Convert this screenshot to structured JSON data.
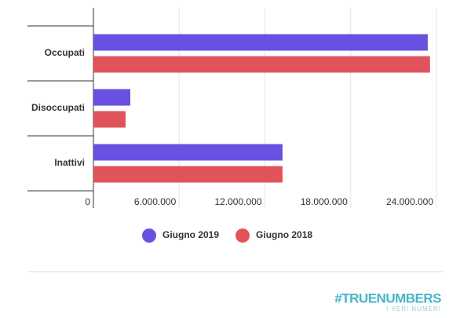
{
  "chart_data": {
    "type": "hbar",
    "categories": [
      "Occupati",
      "Disoccupati",
      "Inattivi"
    ],
    "series": [
      {
        "name": "Giugno 2019",
        "color": "#6a50e0",
        "values": [
          23390000,
          2580000,
          13230000
        ]
      },
      {
        "name": "Giugno 2018",
        "color": "#e0535a",
        "values": [
          23550000,
          2250000,
          13230000
        ]
      }
    ],
    "xlim": [
      0,
      24000000
    ],
    "xticks": [
      0,
      {
        "value": 6000000,
        "label": "6.000.000"
      },
      {
        "value": 12000000,
        "label": "12.000.000"
      },
      {
        "value": 18000000,
        "label": "18.000.000"
      },
      {
        "value": 24000000,
        "label": "24.000.000"
      }
    ],
    "grid": true
  },
  "logo": {
    "title": "#TRUENUMBERS",
    "subtitle": "I VERI NUMERI"
  }
}
